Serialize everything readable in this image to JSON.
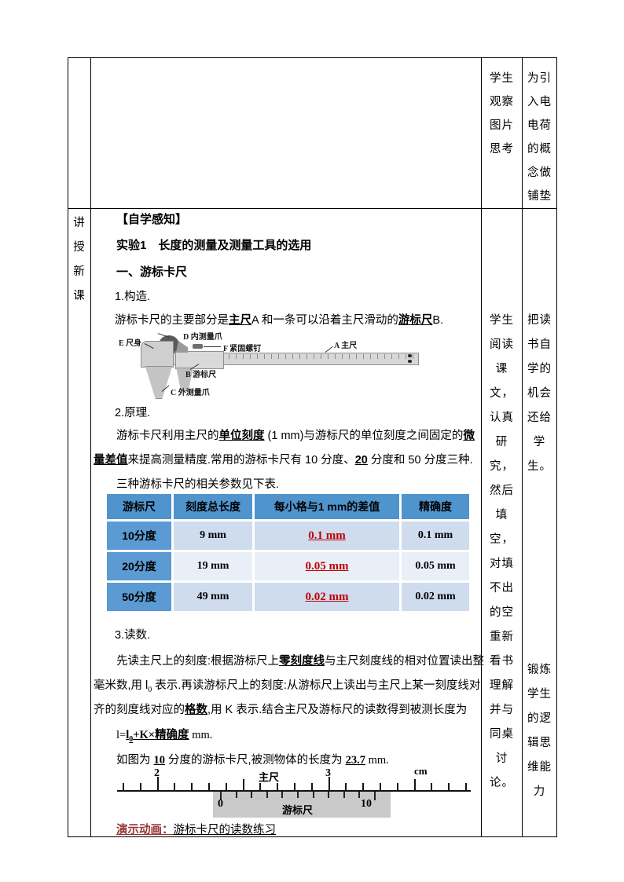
{
  "side": {
    "row1_col3": [
      "学生",
      "观察",
      "图片",
      "思考"
    ],
    "row1_col4": [
      "为引",
      "入电",
      "电荷",
      "的概",
      "念做",
      "铺垫"
    ],
    "row2_col1": [
      "讲",
      "授",
      "新",
      "课"
    ],
    "row2_col3": [
      "学生",
      "阅读",
      "课",
      "文，",
      "认真",
      "研",
      "究，",
      "然后",
      "填",
      "空，",
      "对填",
      "不出",
      "的空",
      "重新",
      "看书",
      "理解",
      "并与",
      "同桌",
      "讨",
      "论。"
    ],
    "row2_col4_a": [
      "把读",
      "书自",
      "学的",
      "机会",
      "还给",
      "学",
      "生。"
    ],
    "row2_col4_b": [
      "锻炼",
      "学生",
      "的逻",
      "辑思",
      "维能",
      "力"
    ]
  },
  "content": {
    "sec_header": "【自学感知】",
    "exp_title": "实验1　长度的测量及测量工具的选用",
    "sub1": "一、游标卡尺",
    "c1_label": "1.构造.",
    "construct": {
      "t1": "游标卡尺的主要部分是",
      "b1": "主尺",
      "t2": "A 和一条可以沿着主尺滑动的",
      "b2": "游标尺",
      "t3": "B."
    },
    "caliper": {
      "e": "E 尺身",
      "d": "D 内测量爪",
      "f": "F 紧固螺钉",
      "a": "A 主尺",
      "b": "B 游标尺",
      "c": "C 外测量爪"
    },
    "c2_label": "2.原理.",
    "principle_l1": {
      "t1": "游标卡尺利用主尺的",
      "b1": "单位刻度",
      "t2": " (1 mm)与游标尺的单位刻度之间固定的",
      "b2": "微"
    },
    "principle_l2": {
      "b1": "量差值",
      "t1": "来提高测量精度.常用的游标卡尺有 10 分度、",
      "b2": "20",
      "t2": " 分度和 50 分度三种."
    },
    "table_intro": "三种游标卡尺的相关参数见下表.",
    "table": {
      "headers": [
        "游标尺",
        "刻度总长度",
        "每小格与1 mm的差值",
        "精确度"
      ],
      "rows": [
        {
          "name": "10分度",
          "total": "9 mm",
          "diff": "0.1 mm",
          "prec": "0.1 mm"
        },
        {
          "name": "20分度",
          "total": "19 mm",
          "diff": "0.05 mm",
          "prec": "0.05 mm"
        },
        {
          "name": "50分度",
          "total": "49 mm",
          "diff": "0.02 mm",
          "prec": "0.02 mm"
        }
      ]
    },
    "c3_label": "3.读数.",
    "reading_l1": {
      "t1": "先读主尺上的刻度:根据游标尺上",
      "b1": "零刻度线",
      "t2": "与主尺刻度线的相对位置读出整"
    },
    "reading_l2": {
      "a": "毫米数,用 l",
      "sub": "0",
      "b": " 表示.再读游标尺上的刻度:从游标尺上读出与主尺上某一刻度线对"
    },
    "reading_l3": {
      "t1": "齐的刻度线对应的",
      "b1": "格数",
      "t2": ",用 K 表示.结合主尺及游标尺的读数得到被测长度为"
    },
    "formula": {
      "t1": "l=",
      "b1": "l",
      "sub": "0",
      "b2": "+K×",
      "b3": "精确度",
      "t2": " mm."
    },
    "figure_sentence": {
      "t1": "如图为 ",
      "b1": "10",
      "t2": " 分度的游标卡尺,被测物体的长度为 ",
      "b2": "23.7",
      "t3": " mm."
    },
    "ruler": {
      "two": "2",
      "main_label": "主尺",
      "three": "3",
      "unit": "cm",
      "v0": "0",
      "vernier_label": "游标尺",
      "v10": "10"
    },
    "demo": {
      "prefix": "演示动画：",
      "text": "游标卡尺的读数练习"
    }
  },
  "colors": {
    "table_header_blue": "#5094ce",
    "table_rowname_blue": "#5b9ad2",
    "band_dark": "#cedcee",
    "band_light": "#e9eff7",
    "value_red": "#c00000",
    "demo_red": "#943634"
  }
}
